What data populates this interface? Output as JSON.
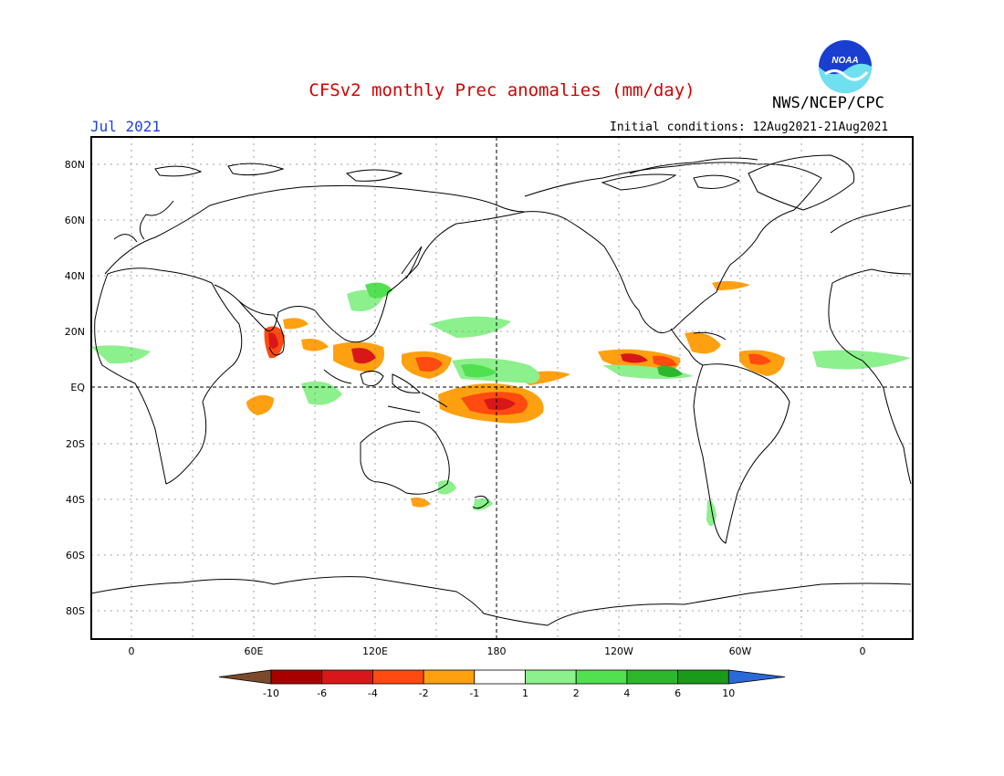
{
  "title": "CFSv2 monthly Prec anomalies (mm/day)",
  "agency": "NWS/NCEP/CPC",
  "valid_month": "Jul 2021",
  "initial_conditions": "Initial conditions: 12Aug2021-21Aug2021",
  "logo_text": "NOAA",
  "lat_labels": [
    "80N",
    "60N",
    "40N",
    "20N",
    "EQ",
    "20S",
    "40S",
    "60S",
    "80S"
  ],
  "lon_labels": [
    "0",
    "60E",
    "120E",
    "180",
    "120W",
    "60W",
    "0"
  ],
  "colorbar": {
    "ticks": [
      "-10",
      "-6",
      "-4",
      "-2",
      "-1",
      "1",
      "2",
      "4",
      "6",
      "10"
    ],
    "colors": [
      "#7a4a2a",
      "#a80000",
      "#d81818",
      "#ff4a10",
      "#ffa010",
      "#ffffff",
      "#8cf08c",
      "#50e050",
      "#2cb82c",
      "#1a9a1a",
      "#2a6ad8"
    ]
  },
  "colors": {
    "land_outline": "#000000",
    "grid": "#888888",
    "deficit_strong": "#d81818",
    "deficit_mid": "#ff4a10",
    "deficit_weak": "#ffa010",
    "surplus_weak": "#8cf08c",
    "surplus_mid": "#50e050",
    "surplus_strong": "#2cb82c"
  }
}
